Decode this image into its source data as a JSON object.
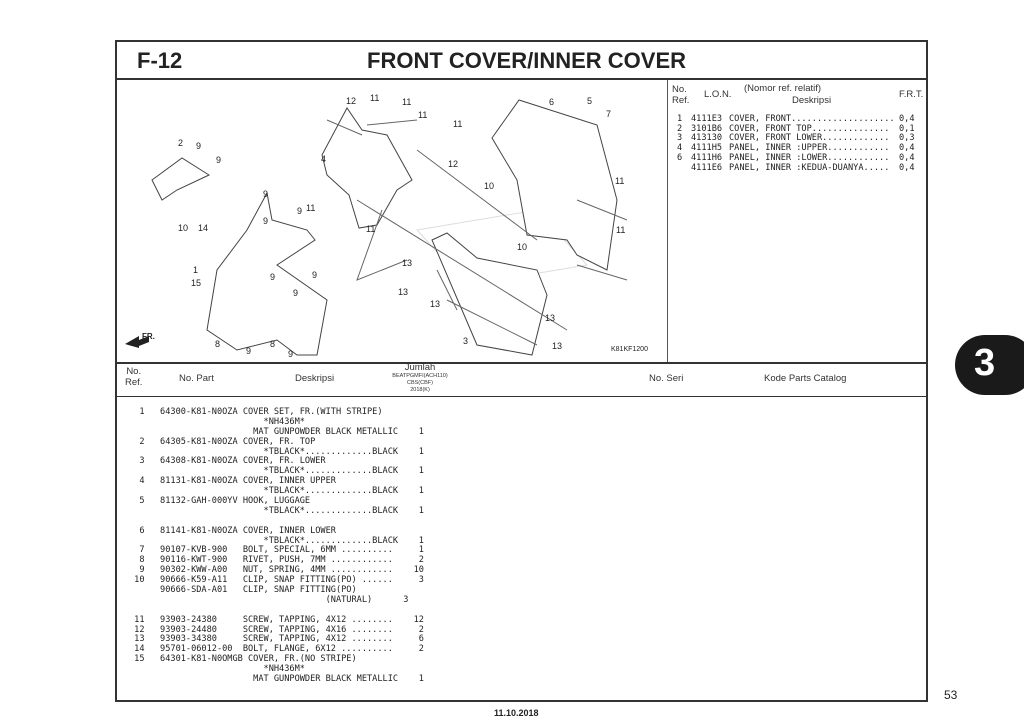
{
  "header": {
    "code": "F-12",
    "title": "FRONT COVER/INNER COVER"
  },
  "diagram": {
    "image_code": "K81KF1200",
    "front_label": "FR.",
    "callouts": [
      "12",
      "11",
      "11",
      "11",
      "11",
      "6",
      "5",
      "7",
      "2",
      "9",
      "9",
      "4",
      "12",
      "10",
      "11",
      "9",
      "11",
      "9",
      "9",
      "10",
      "14",
      "11",
      "11",
      "10",
      "13",
      "1",
      "15",
      "9",
      "9",
      "13",
      "9",
      "13",
      "13",
      "3",
      "13",
      "8",
      "9",
      "8",
      "9"
    ]
  },
  "frt_table": {
    "headers": {
      "ref": "No.\nRef.",
      "lon": "L.O.N.",
      "desc_top": "(Nomor ref. relatif)",
      "desc": "Deskripsi",
      "frt": "F.R.T."
    },
    "rows": [
      {
        "ref": "1",
        "lon": "4111E3",
        "desc": "COVER, FRONT....................",
        "frt": "0,4"
      },
      {
        "ref": "2",
        "lon": "3101B6",
        "desc": "COVER, FRONT TOP...............",
        "frt": "0,1"
      },
      {
        "ref": "3",
        "lon": "413130",
        "desc": "COVER, FRONT LOWER.............",
        "frt": "0,3"
      },
      {
        "ref": "4",
        "lon": "4111H5",
        "desc": "PANEL, INNER :UPPER............",
        "frt": "0,4"
      },
      {
        "ref": "6",
        "lon": "4111H6",
        "desc": "PANEL, INNER :LOWER............",
        "frt": "0,4"
      },
      {
        "ref": "",
        "lon": "4111E6",
        "desc": "PANEL, INNER :KEDUA-DUANYA.....",
        "frt": "0,4"
      }
    ]
  },
  "parts_table": {
    "headers": {
      "ref": "No.\nRef.",
      "part": "No. Part",
      "desc": "Deskripsi",
      "qty": "Jumlah",
      "model": "BEATPGMFI(ACH110)",
      "variant": "CBS(CBF)",
      "year": "2018(K)",
      "serial": "No. Seri",
      "catalog": "Kode Parts Catalog"
    },
    "lines": [
      "  1   64300-K81-N0OZA COVER SET, FR.(WITH STRIPE)",
      "                          *NH436M*",
      "                        MAT GUNPOWDER BLACK METALLIC    1",
      "  2   64305-K81-N0OZA COVER, FR. TOP",
      "                          *TBLACK*.............BLACK    1",
      "  3   64308-K81-N0OZA COVER, FR. LOWER",
      "                          *TBLACK*.............BLACK    1",
      "  4   81131-K81-N0OZA COVER, INNER UPPER",
      "                          *TBLACK*.............BLACK    1",
      "  5   81132-GAH-000YV HOOK, LUGGAGE",
      "                          *TBLACK*.............BLACK    1",
      "",
      "  6   81141-K81-N0OZA COVER, INNER LOWER",
      "                          *TBLACK*.............BLACK    1",
      "  7   90107-KVB-900   BOLT, SPECIAL, 6MM ..........     1",
      "  8   90116-KWT-900   RIVET, PUSH, 7MM ............     2",
      "  9   90302-KWW-A00   NUT, SPRING, 4MM ............    10",
      " 10   90666-K59-A11   CLIP, SNAP FITTING(PO) ......     3",
      "      90666-SDA-A01   CLIP, SNAP FITTING(PO)",
      "                                      (NATURAL)      3",
      "",
      " 11   93903-24380     SCREW, TAPPING, 4X12 ........    12",
      " 12   93903-24480     SCREW, TAPPING, 4X16 ........     2",
      " 13   93903-34380     SCREW, TAPPING, 4X12 ........     6",
      " 14   95701-06012-00  BOLT, FLANGE, 6X12 ..........     2",
      " 15   64301-K81-N0OMGB COVER, FR.(NO STRIPE)",
      "                          *NH436M*",
      "                        MAT GUNPOWDER BLACK METALLIC    1"
    ]
  },
  "section_tab": "3",
  "page_number": "53",
  "print_date": "11.10.2018"
}
